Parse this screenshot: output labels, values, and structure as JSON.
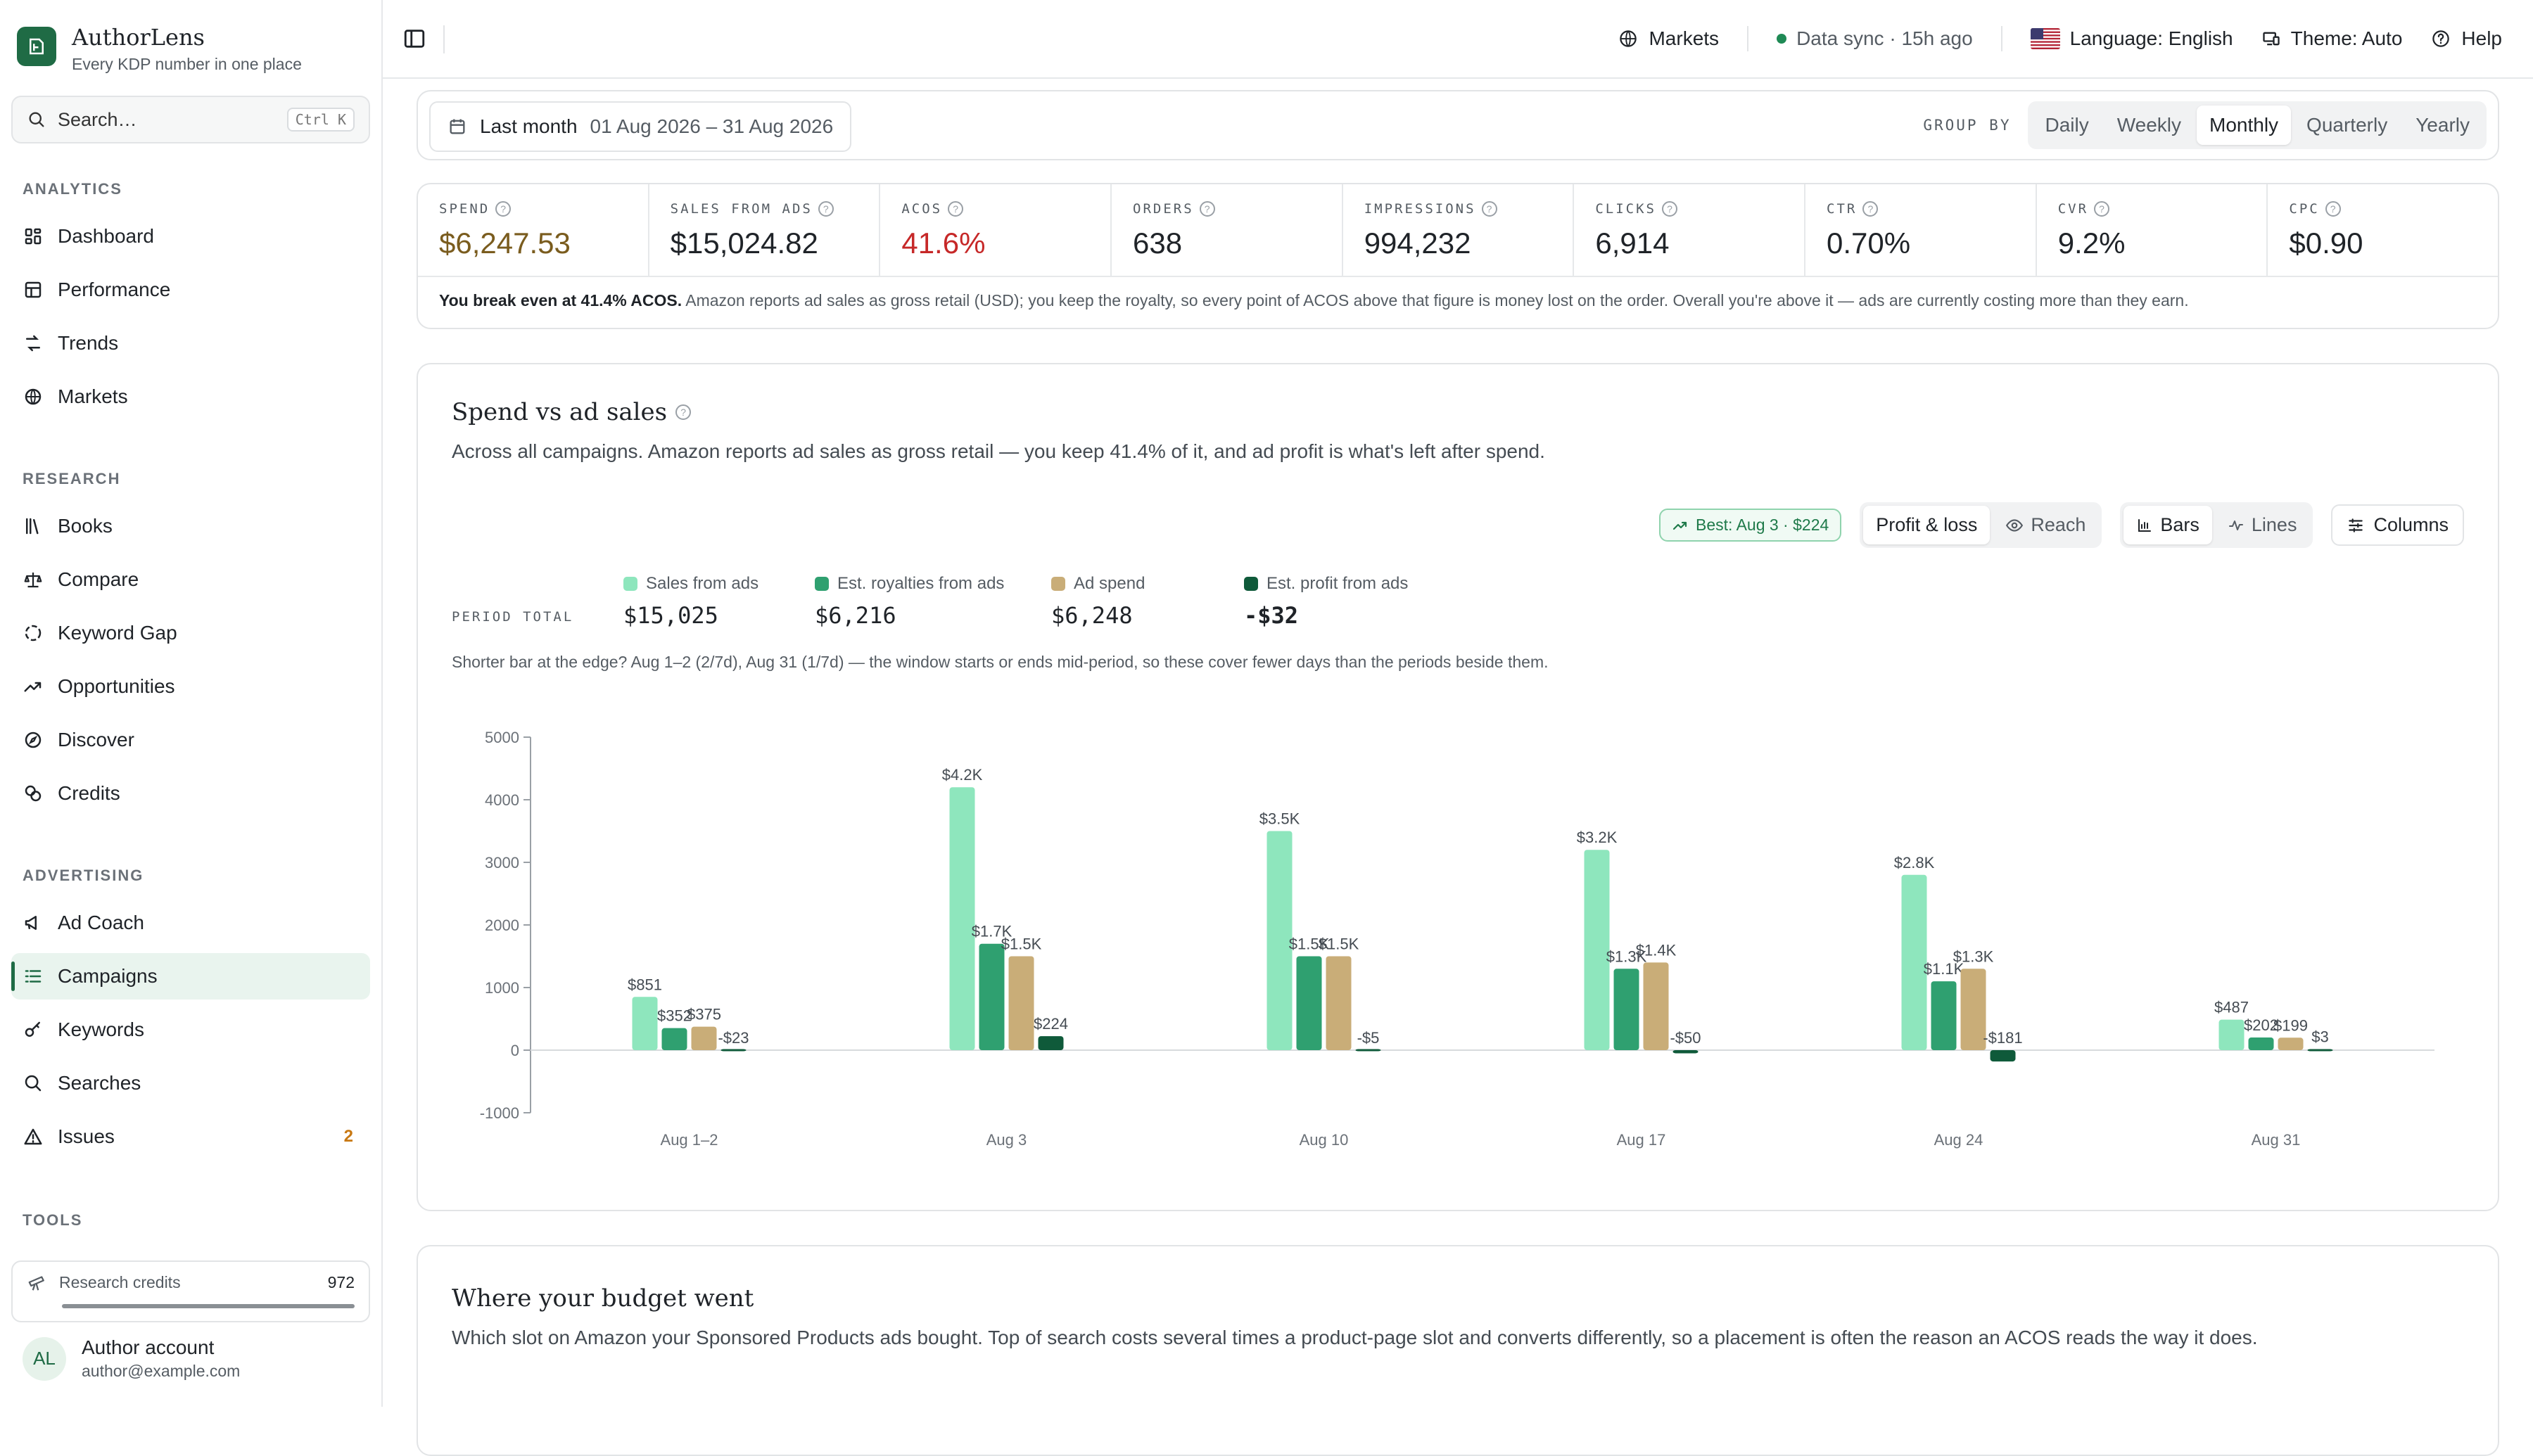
{
  "app": {
    "name": "AuthorLens",
    "tagline": "Every KDP number in one place"
  },
  "search": {
    "placeholder": "Search…",
    "shortcut": "Ctrl K"
  },
  "sidebar": {
    "sections": [
      {
        "label": "ANALYTICS",
        "items": [
          {
            "label": "Dashboard",
            "icon": "dashboard-icon"
          },
          {
            "label": "Performance",
            "icon": "table-icon"
          },
          {
            "label": "Trends",
            "icon": "trends-icon"
          },
          {
            "label": "Markets",
            "icon": "globe-icon"
          }
        ]
      },
      {
        "label": "RESEARCH",
        "items": [
          {
            "label": "Books",
            "icon": "books-icon"
          },
          {
            "label": "Compare",
            "icon": "scale-icon"
          },
          {
            "label": "Keyword Gap",
            "icon": "gap-icon"
          },
          {
            "label": "Opportunities",
            "icon": "trending-up-icon"
          },
          {
            "label": "Discover",
            "icon": "compass-icon"
          },
          {
            "label": "Credits",
            "icon": "coins-icon"
          }
        ]
      },
      {
        "label": "ADVERTISING",
        "items": [
          {
            "label": "Ad Coach",
            "icon": "megaphone-icon"
          },
          {
            "label": "Campaigns",
            "icon": "list-icon",
            "active": true
          },
          {
            "label": "Keywords",
            "icon": "key-icon"
          },
          {
            "label": "Searches",
            "icon": "search-icon"
          },
          {
            "label": "Issues",
            "icon": "warning-icon",
            "badge": "2"
          }
        ]
      },
      {
        "label": "TOOLS",
        "items": []
      }
    ],
    "credits": {
      "label": "Research credits",
      "value": "972",
      "fill_fraction": 1.0
    },
    "account": {
      "initials": "AL",
      "name": "Author account",
      "email": "author@example.com"
    }
  },
  "topbar": {
    "markets": "Markets",
    "sync": "Data sync · 15h ago",
    "language": "Language: English",
    "theme": "Theme: Auto",
    "help": "Help"
  },
  "date_range": {
    "preset": "Last month",
    "range": "01 Aug 2026 – 31 Aug 2026",
    "group_by_label": "GROUP BY",
    "options": [
      "Daily",
      "Weekly",
      "Monthly",
      "Quarterly",
      "Yearly"
    ],
    "selected": "Monthly"
  },
  "kpis": [
    {
      "label": "SPEND",
      "value": "$6,247.53",
      "color": "#7a5c1e"
    },
    {
      "label": "SALES FROM ADS",
      "value": "$15,024.82",
      "color": "#1f2328"
    },
    {
      "label": "ACOS",
      "value": "41.6%",
      "color": "#c62828"
    },
    {
      "label": "ORDERS",
      "value": "638",
      "color": "#1f2328"
    },
    {
      "label": "IMPRESSIONS",
      "value": "994,232",
      "color": "#1f2328"
    },
    {
      "label": "CLICKS",
      "value": "6,914",
      "color": "#1f2328"
    },
    {
      "label": "CTR",
      "value": "0.70%",
      "color": "#1f2328"
    },
    {
      "label": "CVR",
      "value": "9.2%",
      "color": "#1f2328"
    },
    {
      "label": "CPC",
      "value": "$0.90",
      "color": "#1f2328"
    }
  ],
  "kpi_note": {
    "bold": "You break even at 41.4% ACOS.",
    "text": "Amazon reports ad sales as gross retail (USD); you keep the royalty, so every point of ACOS above that figure is money lost on the order. Overall you're above it — ads are currently costing more than they earn."
  },
  "chart_section": {
    "title": "Spend vs ad sales",
    "subtitle": "Across all campaigns. Amazon reports ad sales as gross retail — you keep 41.4% of it, and ad profit is what's left after spend.",
    "best": "Best: Aug 3 · $224",
    "view_toggle": [
      "Profit & loss",
      "Reach"
    ],
    "view_selected": "Profit & loss",
    "type_toggle": [
      "Bars",
      "Lines"
    ],
    "type_selected": "Bars",
    "columns_label": "Columns",
    "period_total_label": "PERIOD TOTAL",
    "legend": [
      {
        "name": "Sales from ads",
        "total": "$15,025",
        "color": "#8ee6bd"
      },
      {
        "name": "Est. royalties from ads",
        "total": "$6,216",
        "color": "#2fa070"
      },
      {
        "name": "Ad spend",
        "total": "$6,248",
        "color": "#c9ad78"
      },
      {
        "name": "Est. profit from ads",
        "total": "-$32",
        "color": "#0f5a3a"
      }
    ],
    "note": "Shorter bar at the edge? Aug 1–2 (2/7d), Aug 31 (1/7d) — the window starts or ends mid-period, so these cover fewer days than the periods beside them."
  },
  "chart_data": {
    "type": "bar",
    "categories": [
      "Aug 1–2",
      "Aug 3",
      "Aug 10",
      "Aug 17",
      "Aug 24",
      "Aug 31"
    ],
    "series": [
      {
        "name": "Sales from ads",
        "values": [
          851,
          4200,
          3500,
          3200,
          2800,
          487
        ],
        "labels": [
          "$851",
          "$4.2K",
          "$3.5K",
          "$3.2K",
          "$2.8K",
          "$487"
        ]
      },
      {
        "name": "Est. royalties from ads",
        "values": [
          352,
          1700,
          1500,
          1300,
          1100,
          202
        ],
        "labels": [
          "$352",
          "$1.7K",
          "$1.5K",
          "$1.3K",
          "$1.1K",
          "$202"
        ]
      },
      {
        "name": "Ad spend",
        "values": [
          375,
          1500,
          1500,
          1400,
          1300,
          199
        ],
        "labels": [
          "$375",
          "$1.5K",
          "$1.5K",
          "$1.4K",
          "$1.3K",
          "$199"
        ]
      },
      {
        "name": "Est. profit from ads",
        "values": [
          -23,
          224,
          -5,
          -50,
          -181,
          3
        ],
        "labels": [
          "-$23",
          "$224",
          "-$5",
          "-$50",
          "-$181",
          "$3"
        ]
      }
    ],
    "yticks": [
      5000,
      4000,
      3000,
      2000,
      1000,
      0,
      -1000
    ],
    "ylim": [
      -1000,
      5000
    ],
    "grid": "zero-line only",
    "legend": "top"
  },
  "budget_section": {
    "title": "Where your budget went",
    "subtitle": "Which slot on Amazon your Sponsored Products ads bought. Top of search costs several times a product-page slot and converts differently, so a placement is often the reason an ACOS reads the way it does."
  }
}
